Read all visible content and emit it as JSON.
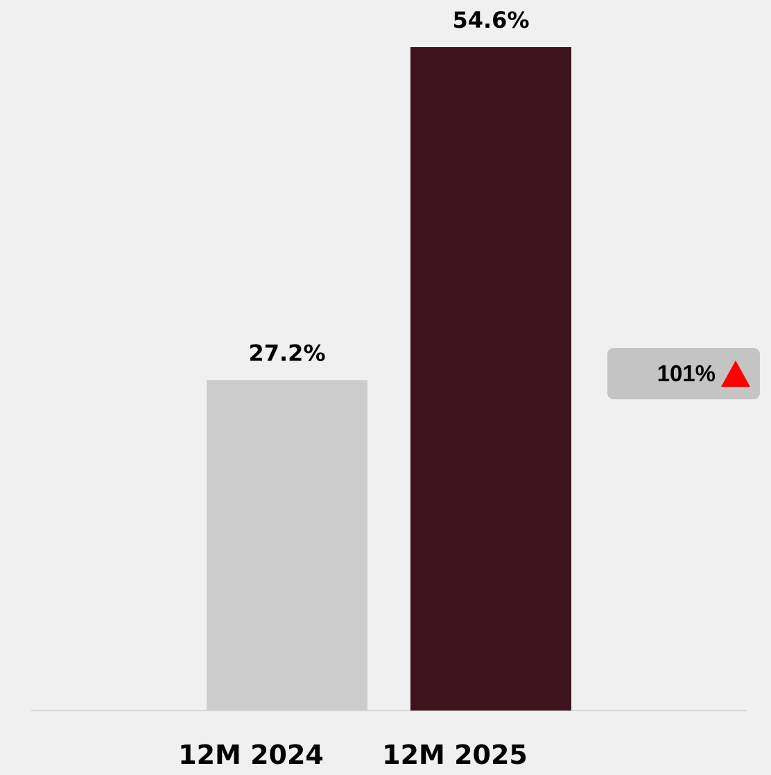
{
  "chart_data": {
    "type": "bar",
    "categories": [
      "12M 2024",
      "12M 2025"
    ],
    "values": [
      27.2,
      54.6
    ],
    "value_labels": [
      "27.2%",
      "54.6%"
    ],
    "bar_colors": [
      "#cccccc",
      "#3d141e"
    ],
    "ylim": [
      0,
      54.6
    ],
    "grid": false,
    "legend": "none"
  },
  "change_badge": {
    "text": "101%",
    "icon": "triangle-up-icon",
    "icon_color": "#ff0000",
    "background": "#c4c4c4"
  }
}
